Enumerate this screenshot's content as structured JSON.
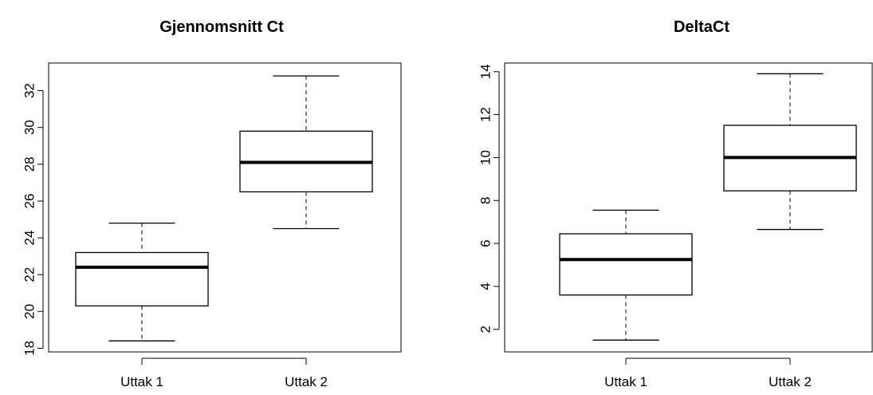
{
  "chart_data": [
    {
      "type": "box",
      "title": "Gjennomsnitt Ct",
      "xlabel": "",
      "ylabel": "",
      "categories": [
        "Uttak 1",
        "Uttak 2"
      ],
      "ylim": [
        17.8,
        33.5
      ],
      "yticks": [
        18,
        20,
        22,
        24,
        26,
        28,
        30,
        32
      ],
      "boxes": [
        {
          "category": "Uttak 1",
          "min": 18.4,
          "q1": 20.3,
          "median": 22.4,
          "q3": 23.2,
          "max": 24.8
        },
        {
          "category": "Uttak 2",
          "min": 24.5,
          "q1": 26.5,
          "median": 28.1,
          "q3": 29.8,
          "max": 32.8
        }
      ],
      "grid": false,
      "legend": "none"
    },
    {
      "type": "box",
      "title": "DeltaCt",
      "xlabel": "",
      "ylabel": "",
      "categories": [
        "Uttak 1",
        "Uttak 2"
      ],
      "ylim": [
        0.95,
        14.4
      ],
      "yticks": [
        2,
        4,
        6,
        8,
        10,
        12,
        14
      ],
      "boxes": [
        {
          "category": "Uttak 1",
          "min": 1.5,
          "q1": 3.6,
          "median": 5.25,
          "q3": 6.45,
          "max": 7.55
        },
        {
          "category": "Uttak 2",
          "min": 6.65,
          "q1": 8.45,
          "median": 10.0,
          "q3": 11.5,
          "max": 13.9
        }
      ],
      "grid": false,
      "legend": "none"
    }
  ]
}
